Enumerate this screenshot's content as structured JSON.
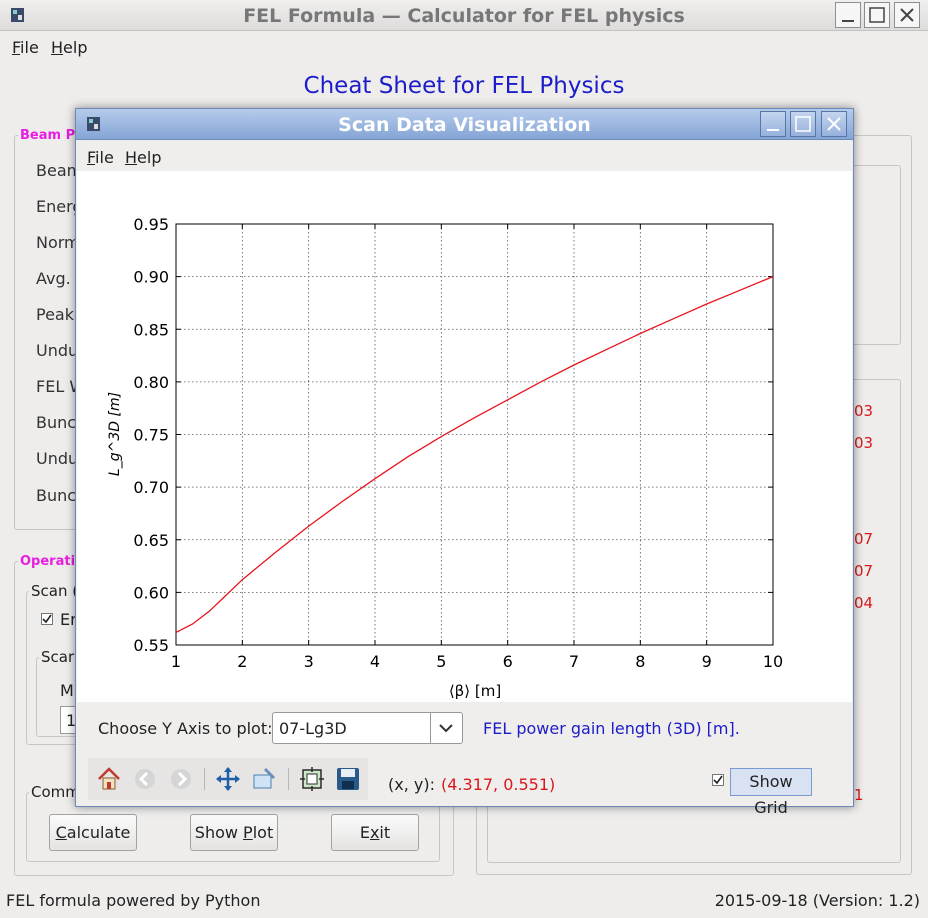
{
  "main_window": {
    "title": "FEL Formula — Calculator for FEL physics",
    "menu": {
      "file": "File",
      "help": "Help"
    },
    "heading": "Cheat Sheet for FEL Physics",
    "beam_group_title": "Beam Pa",
    "param_labels": [
      "Beam",
      "Energ",
      "Norm",
      "Avg.",
      "Peak",
      "Undu",
      "FEL W",
      "Bunc",
      "Undu",
      "Bunc"
    ],
    "operation_group_title": "Operatio",
    "scan_group_title": "Scan (",
    "enable_label": "Er",
    "scan_sub_title": "Scar",
    "m_label": "M",
    "m_value": "1",
    "command_group_title": "Comm",
    "right_values": [
      "03",
      "03",
      "07",
      "07",
      "04",
      "1"
    ],
    "buttons": {
      "calculate": "Calculate",
      "show_plot": "Show Plot",
      "exit": "Exit"
    },
    "status_left": "FEL formula powered by Python",
    "status_right": "2015-09-18  (Version: 1.2)"
  },
  "dialog": {
    "title": "Scan Data Visualization",
    "menu": {
      "file": "File",
      "help": "Help"
    },
    "choose_label": "Choose Y Axis to plot:",
    "y_axis_selected": "07-Lg3D",
    "y_axis_description": "FEL power gain length (3D) [m].",
    "xy_label": "(x, y):",
    "xy_value": "(4.317, 0.551)",
    "show_grid_label": "Show Grid",
    "show_grid_checked": true
  },
  "chart_data": {
    "type": "line",
    "xlabel": "⟨β⟩ [m]",
    "ylabel": "L_g^3D [m]",
    "xlim": [
      1,
      10
    ],
    "ylim": [
      0.55,
      0.95
    ],
    "x_ticks": [
      1,
      2,
      3,
      4,
      5,
      6,
      7,
      8,
      9,
      10
    ],
    "y_ticks": [
      "0.55",
      "0.60",
      "0.65",
      "0.70",
      "0.75",
      "0.80",
      "0.85",
      "0.90",
      "0.95"
    ],
    "grid": true,
    "series": [
      {
        "name": "07-Lg3D",
        "color": "#e8141e",
        "x": [
          1,
          1.25,
          1.5,
          1.75,
          2,
          2.5,
          3,
          3.5,
          4,
          4.5,
          5,
          5.5,
          6,
          6.5,
          7,
          7.5,
          8,
          8.5,
          9,
          9.5,
          10
        ],
        "y": [
          0.562,
          0.57,
          0.582,
          0.597,
          0.612,
          0.638,
          0.663,
          0.686,
          0.708,
          0.729,
          0.748,
          0.766,
          0.783,
          0.8,
          0.816,
          0.831,
          0.846,
          0.86,
          0.874,
          0.887,
          0.9
        ]
      }
    ]
  }
}
